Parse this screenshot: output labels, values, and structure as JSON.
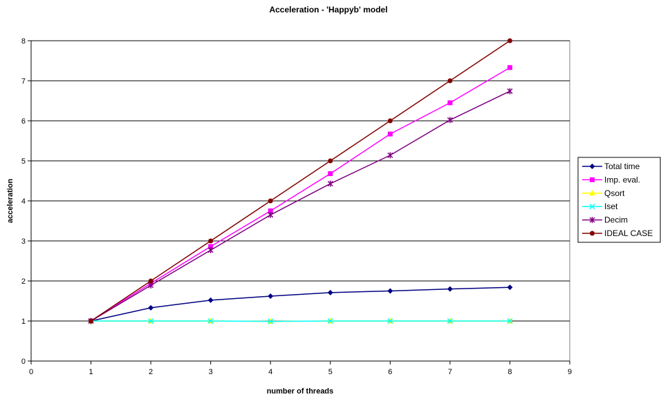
{
  "chart_data": {
    "type": "line",
    "title": "Acceleration - 'Happyb' model",
    "xlabel": "number of threads",
    "ylabel": "acceleration",
    "xlim": [
      0,
      9
    ],
    "ylim": [
      0,
      8
    ],
    "x_ticks": [
      0,
      1,
      2,
      3,
      4,
      5,
      6,
      7,
      8,
      9
    ],
    "y_ticks": [
      0,
      1,
      2,
      3,
      4,
      5,
      6,
      7,
      8
    ],
    "grid": "horizontal major gridlines",
    "legend_position": "right",
    "x": [
      1,
      2,
      3,
      4,
      5,
      6,
      7,
      8
    ],
    "series": [
      {
        "name": "Total time",
        "color": "#000080",
        "marker": "diamond",
        "values": [
          1.0,
          1.33,
          1.52,
          1.62,
          1.71,
          1.75,
          1.8,
          1.84
        ]
      },
      {
        "name": "Imp. eval.",
        "color": "#ff00ff",
        "marker": "square",
        "values": [
          1.0,
          1.94,
          2.86,
          3.75,
          4.68,
          5.67,
          6.45,
          7.33
        ]
      },
      {
        "name": "Qsort",
        "color": "#ffff00",
        "marker": "triangle",
        "values": [
          1.0,
          1.0,
          1.0,
          0.99,
          1.0,
          1.0,
          1.0,
          1.0
        ]
      },
      {
        "name": "Iset",
        "color": "#00ffff",
        "marker": "x",
        "values": [
          1.0,
          1.0,
          1.0,
          0.99,
          1.0,
          1.0,
          1.0,
          1.0
        ]
      },
      {
        "name": "Decim",
        "color": "#800080",
        "marker": "star",
        "values": [
          1.0,
          1.89,
          2.77,
          3.65,
          4.43,
          5.14,
          6.02,
          6.74
        ]
      },
      {
        "name": "IDEAL CASE",
        "color": "#800000",
        "marker": "circle",
        "values": [
          1,
          2,
          3,
          4,
          5,
          6,
          7,
          8
        ]
      }
    ]
  }
}
